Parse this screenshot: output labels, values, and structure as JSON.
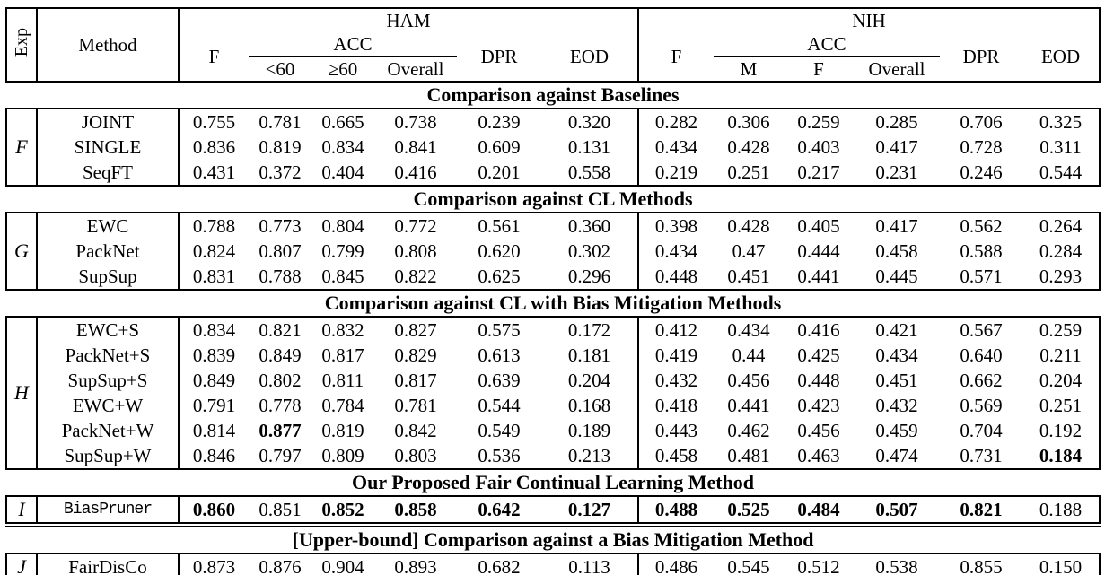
{
  "table": {
    "header": {
      "exp": "Exp",
      "method": "Method",
      "groups": [
        {
          "name": "HAM",
          "f": "F",
          "acc": "ACC",
          "acc_sub": [
            "<60",
            "≥60",
            "Overall"
          ],
          "dpr": "DPR",
          "eod": "EOD"
        },
        {
          "name": "NIH",
          "f": "F",
          "acc": "ACC",
          "acc_sub": [
            "M",
            "F",
            "Overall"
          ],
          "dpr": "DPR",
          "eod": "EOD"
        }
      ]
    },
    "sections": [
      {
        "title": "Comparison against Baselines",
        "exp_label": "F",
        "rows": [
          {
            "method": "JOINT",
            "values": [
              "0.755",
              "0.781",
              "0.665",
              "0.738",
              "0.239",
              "0.320",
              "0.282",
              "0.306",
              "0.259",
              "0.285",
              "0.706",
              "0.325"
            ],
            "bold": []
          },
          {
            "method": "SINGLE",
            "values": [
              "0.836",
              "0.819",
              "0.834",
              "0.841",
              "0.609",
              "0.131",
              "0.434",
              "0.428",
              "0.403",
              "0.417",
              "0.728",
              "0.311"
            ],
            "bold": []
          },
          {
            "method": "SeqFT",
            "values": [
              "0.431",
              "0.372",
              "0.404",
              "0.416",
              "0.201",
              "0.558",
              "0.219",
              "0.251",
              "0.217",
              "0.231",
              "0.246",
              "0.544"
            ],
            "bold": []
          }
        ]
      },
      {
        "title": "Comparison against CL Methods",
        "exp_label": "G",
        "rows": [
          {
            "method": "EWC",
            "values": [
              "0.788",
              "0.773",
              "0.804",
              "0.772",
              "0.561",
              "0.360",
              "0.398",
              "0.428",
              "0.405",
              "0.417",
              "0.562",
              "0.264"
            ],
            "bold": []
          },
          {
            "method": "PackNet",
            "values": [
              "0.824",
              "0.807",
              "0.799",
              "0.808",
              "0.620",
              "0.302",
              "0.434",
              "0.47",
              "0.444",
              "0.458",
              "0.588",
              "0.284"
            ],
            "bold": []
          },
          {
            "method": "SupSup",
            "values": [
              "0.831",
              "0.788",
              "0.845",
              "0.822",
              "0.625",
              "0.296",
              "0.448",
              "0.451",
              "0.441",
              "0.445",
              "0.571",
              "0.293"
            ],
            "bold": []
          }
        ]
      },
      {
        "title": "Comparison against CL with Bias Mitigation Methods",
        "exp_label": "H",
        "rows": [
          {
            "method": "EWC+S",
            "values": [
              "0.834",
              "0.821",
              "0.832",
              "0.827",
              "0.575",
              "0.172",
              "0.412",
              "0.434",
              "0.416",
              "0.421",
              "0.567",
              "0.259"
            ],
            "bold": []
          },
          {
            "method": "PackNet+S",
            "values": [
              "0.839",
              "0.849",
              "0.817",
              "0.829",
              "0.613",
              "0.181",
              "0.419",
              "0.44",
              "0.425",
              "0.434",
              "0.640",
              "0.211"
            ],
            "bold": []
          },
          {
            "method": "SupSup+S",
            "values": [
              "0.849",
              "0.802",
              "0.811",
              "0.817",
              "0.639",
              "0.204",
              "0.432",
              "0.456",
              "0.448",
              "0.451",
              "0.662",
              "0.204"
            ],
            "bold": []
          },
          {
            "method": "EWC+W",
            "values": [
              "0.791",
              "0.778",
              "0.784",
              "0.781",
              "0.544",
              "0.168",
              "0.418",
              "0.441",
              "0.423",
              "0.432",
              "0.569",
              "0.251"
            ],
            "bold": []
          },
          {
            "method": "PackNet+W",
            "values": [
              "0.814",
              "0.877",
              "0.819",
              "0.842",
              "0.549",
              "0.189",
              "0.443",
              "0.462",
              "0.456",
              "0.459",
              "0.704",
              "0.192"
            ],
            "bold": [
              1
            ]
          },
          {
            "method": "SupSup+W",
            "values": [
              "0.846",
              "0.797",
              "0.809",
              "0.803",
              "0.536",
              "0.213",
              "0.458",
              "0.481",
              "0.463",
              "0.474",
              "0.731",
              "0.184"
            ],
            "bold": [
              11
            ]
          }
        ]
      },
      {
        "title": "Our Proposed Fair Continual Learning Method",
        "exp_label": "I",
        "rows": [
          {
            "method": "BiasPruner",
            "mono": true,
            "values": [
              "0.860",
              "0.851",
              "0.852",
              "0.858",
              "0.642",
              "0.127",
              "0.488",
              "0.525",
              "0.484",
              "0.507",
              "0.821",
              "0.188"
            ],
            "bold": [
              0,
              2,
              3,
              4,
              5,
              6,
              7,
              8,
              9,
              10
            ]
          }
        ]
      },
      {
        "title": "[Upper-bound] Comparison against a Bias Mitigation Method",
        "exp_label": "J",
        "double_rule_above": true,
        "rows": [
          {
            "method": "FairDisCo",
            "values": [
              "0.873",
              "0.876",
              "0.904",
              "0.893",
              "0.682",
              "0.113",
              "0.486",
              "0.545",
              "0.512",
              "0.538",
              "0.855",
              "0.150"
            ],
            "bold": []
          }
        ]
      }
    ],
    "colors": {
      "border": "#000000",
      "background": "#ffffff",
      "text": "#000000"
    }
  }
}
